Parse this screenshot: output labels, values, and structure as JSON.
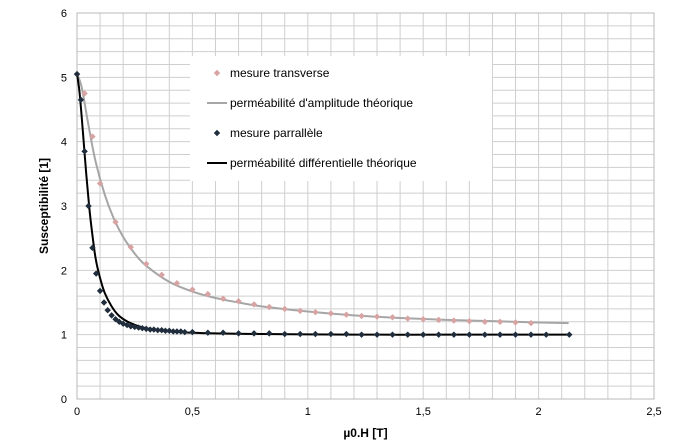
{
  "chart_data": {
    "type": "scatter",
    "title": "",
    "xlabel": "µ0.H [T]",
    "ylabel": "Susceptibilité [1]",
    "xlim": [
      0,
      2.5
    ],
    "ylim": [
      0,
      6
    ],
    "xticks": [
      "0",
      "0,5",
      "1",
      "1,5",
      "2",
      "2,5"
    ],
    "yticks": [
      "0",
      "1",
      "2",
      "3",
      "4",
      "5",
      "6"
    ],
    "grid": true,
    "legend_position": "top-center inside plot",
    "series": [
      {
        "name": "mesure transverse",
        "kind": "markers",
        "marker": "diamond",
        "color": "#d8a3a3",
        "x": [
          0.0,
          0.033,
          0.067,
          0.1,
          0.167,
          0.233,
          0.3,
          0.367,
          0.433,
          0.5,
          0.567,
          0.633,
          0.7,
          0.767,
          0.833,
          0.9,
          0.967,
          1.033,
          1.1,
          1.167,
          1.233,
          1.3,
          1.367,
          1.433,
          1.5,
          1.567,
          1.633,
          1.7,
          1.767,
          1.833,
          1.9,
          1.967
        ],
        "y": [
          5.05,
          4.75,
          4.08,
          3.35,
          2.75,
          2.36,
          2.1,
          1.93,
          1.8,
          1.7,
          1.63,
          1.56,
          1.52,
          1.47,
          1.43,
          1.4,
          1.37,
          1.35,
          1.33,
          1.31,
          1.29,
          1.28,
          1.27,
          1.25,
          1.24,
          1.23,
          1.22,
          1.21,
          1.2,
          1.2,
          1.19,
          1.18
        ]
      },
      {
        "name": "perméabilité d'amplitude théorique",
        "kind": "line",
        "color": "#a6a6a6",
        "x": [
          0.0,
          0.02,
          0.05,
          0.08,
          0.12,
          0.16,
          0.2,
          0.25,
          0.3,
          0.4,
          0.5,
          0.6,
          0.7,
          0.8,
          1.0,
          1.2,
          1.4,
          1.6,
          1.8,
          2.0,
          2.13
        ],
        "y": [
          5.05,
          4.85,
          4.25,
          3.7,
          3.18,
          2.8,
          2.52,
          2.26,
          2.07,
          1.82,
          1.67,
          1.57,
          1.5,
          1.44,
          1.36,
          1.3,
          1.26,
          1.23,
          1.21,
          1.19,
          1.18
        ]
      },
      {
        "name": "mesure parrallèle",
        "kind": "markers",
        "marker": "diamond",
        "color": "#1f2d3d",
        "x": [
          0.0,
          0.017,
          0.033,
          0.05,
          0.067,
          0.083,
          0.1,
          0.117,
          0.133,
          0.15,
          0.167,
          0.183,
          0.2,
          0.217,
          0.233,
          0.25,
          0.267,
          0.283,
          0.3,
          0.317,
          0.333,
          0.35,
          0.367,
          0.383,
          0.4,
          0.417,
          0.433,
          0.45,
          0.467,
          0.5,
          0.567,
          0.633,
          0.7,
          0.767,
          0.833,
          0.9,
          0.967,
          1.033,
          1.1,
          1.167,
          1.233,
          1.3,
          1.367,
          1.433,
          1.5,
          1.567,
          1.633,
          1.7,
          1.767,
          1.833,
          1.9,
          1.967,
          2.033,
          2.133
        ],
        "y": [
          5.05,
          4.65,
          3.85,
          3.0,
          2.35,
          1.95,
          1.68,
          1.5,
          1.38,
          1.3,
          1.24,
          1.2,
          1.17,
          1.15,
          1.13,
          1.12,
          1.11,
          1.1,
          1.09,
          1.08,
          1.08,
          1.07,
          1.07,
          1.06,
          1.06,
          1.05,
          1.05,
          1.05,
          1.04,
          1.04,
          1.03,
          1.03,
          1.02,
          1.02,
          1.02,
          1.01,
          1.01,
          1.01,
          1.01,
          1.01,
          1.0,
          1.0,
          1.0,
          1.0,
          1.0,
          1.0,
          1.0,
          1.0,
          1.0,
          1.0,
          1.0,
          1.0,
          1.0,
          1.0
        ]
      },
      {
        "name": "perméabilité différentielle théorique",
        "kind": "line",
        "color": "#000000",
        "x": [
          0.0,
          0.01,
          0.02,
          0.03,
          0.04,
          0.05,
          0.06,
          0.08,
          0.1,
          0.12,
          0.15,
          0.18,
          0.22,
          0.26,
          0.3,
          0.35,
          0.4,
          0.5,
          0.6,
          0.8,
          1.0,
          1.3,
          1.6,
          2.0,
          2.13
        ],
        "y": [
          5.05,
          4.8,
          4.4,
          3.95,
          3.5,
          3.1,
          2.75,
          2.2,
          1.88,
          1.65,
          1.44,
          1.3,
          1.2,
          1.14,
          1.1,
          1.07,
          1.05,
          1.03,
          1.02,
          1.01,
          1.005,
          1.0,
          1.0,
          1.0,
          1.0
        ]
      }
    ]
  }
}
